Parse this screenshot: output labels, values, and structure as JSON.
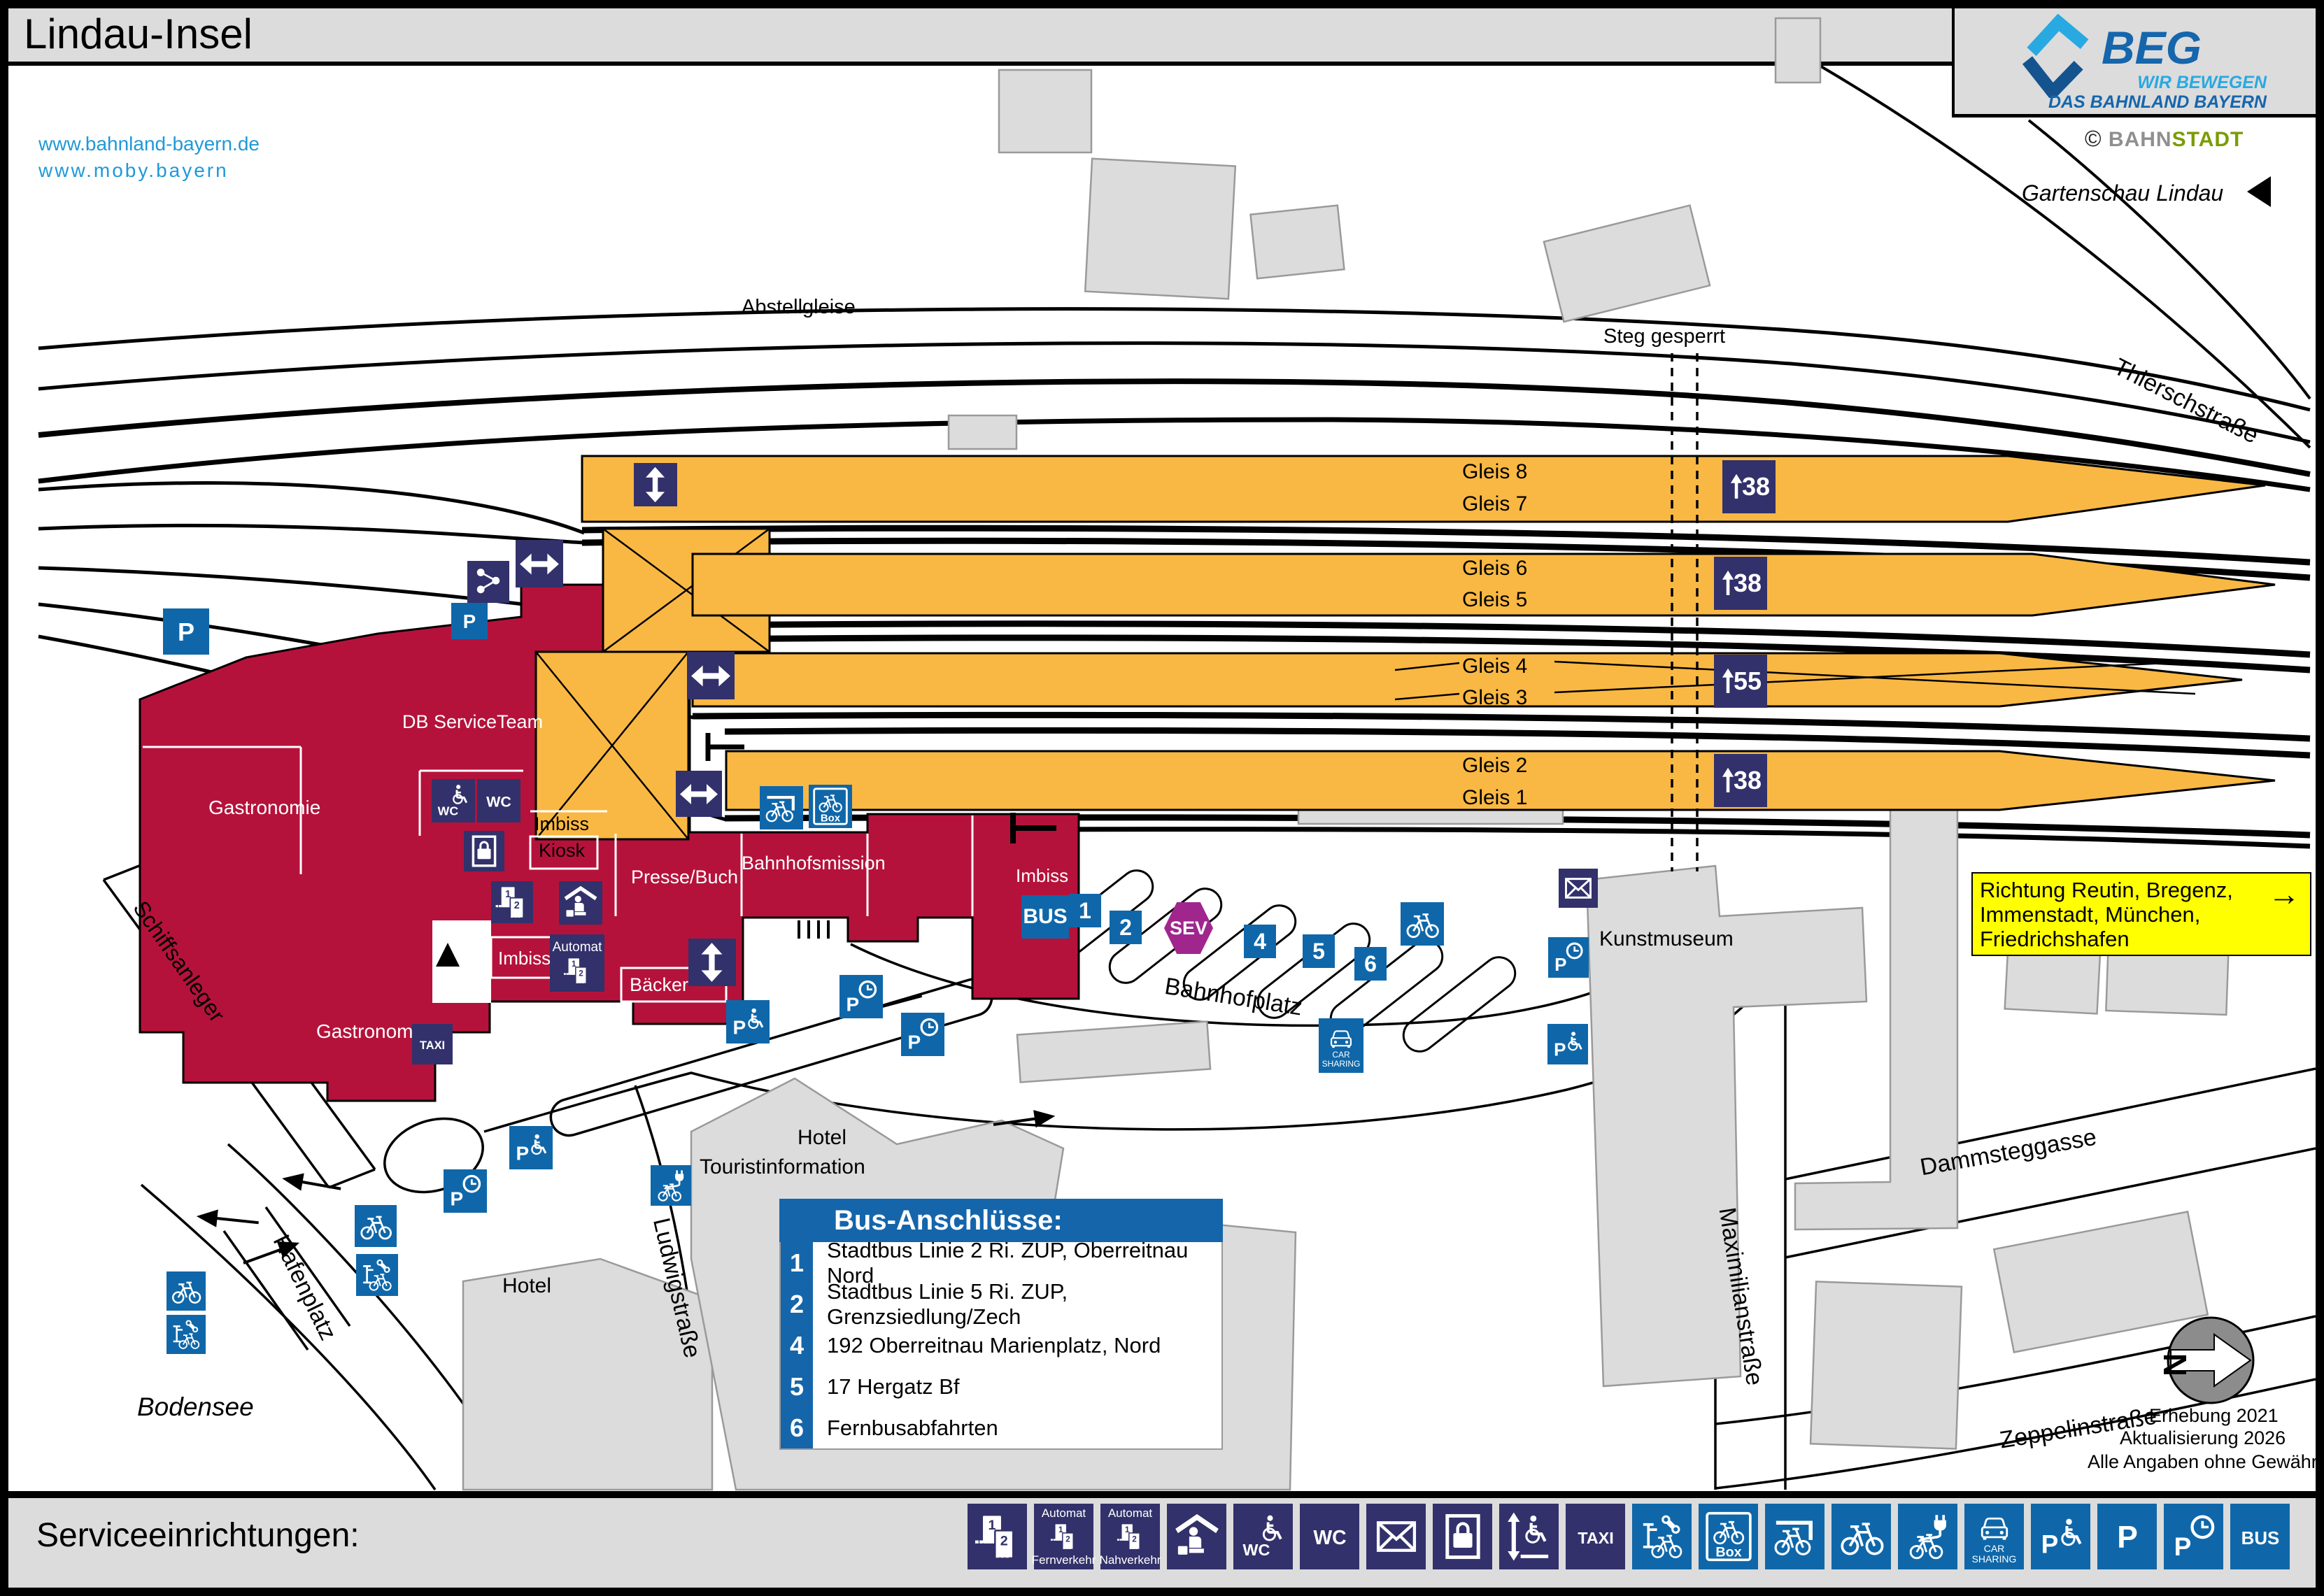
{
  "header": {
    "title": "Lindau-Insel",
    "links": [
      "www.bahnland-bayern.de",
      "www.moby.bayern"
    ],
    "beg": {
      "name": "BEG",
      "tagline1": "WIR BEWEGEN",
      "tagline2": "DAS BAHNLAND BAYERN"
    },
    "credit": {
      "copyright": "©",
      "part1": "BAHN",
      "part2": "STADT"
    },
    "gartenschau": "Gartenschau Lindau"
  },
  "map": {
    "labels": {
      "abstellgleise": "Abstellgleise",
      "steg": "Steg gesperrt",
      "thierschstrasse": "Thierschstraße",
      "bahnhofplatz": "Bahnhofplatz",
      "kunstmuseum": "Kunstmuseum",
      "maximilianstrasse": "Maximilianstraße",
      "dammsteggasse": "Dammsteggasse",
      "zeppelinstrasse": "Zeppelinstraße",
      "hafenplatz": "Hafenplatz",
      "bodensee": "Bodensee",
      "schiffsanleger": "Schiffsanleger",
      "ludwigstrasse": "Ludwigstraße",
      "hotel_left": "Hotel",
      "hotel_center": "Hotel",
      "touristinformation": "Touristinformation"
    },
    "building": {
      "db_serviceteam": "DB ServiceTeam",
      "gastronomie1": "Gastronomie",
      "gastronomie2": "Gastronomie",
      "imbiss_top": "Imbiss",
      "kiosk": "Kiosk",
      "presse_buch": "Presse/Buch",
      "bahnhofsmission": "Bahnhofsmission",
      "imbiss_east": "Imbiss",
      "imbiss_south": "Imbiss",
      "baecker": "Bäcker",
      "automat": "Automat",
      "wc": "WC",
      "taxi": "TAXI"
    },
    "platforms": [
      {
        "top": "Gleis 8",
        "bottom": "Gleis 7",
        "height": "38"
      },
      {
        "top": "Gleis 6",
        "bottom": "Gleis 5",
        "height": "38"
      },
      {
        "top": "Gleis 4",
        "bottom": "Gleis 3",
        "height": "55"
      },
      {
        "top": "Gleis 2",
        "bottom": "Gleis 1",
        "height": "38"
      }
    ],
    "stops": {
      "bus": "BUS",
      "s1": "1",
      "s2": "2",
      "sev": "SEV",
      "s4": "4",
      "s5": "5",
      "s6": "6"
    },
    "direction_box": {
      "line1": "Richtung Reutin, Bregenz,",
      "line2": "Immenstadt, München,",
      "line3": "Friedrichshafen",
      "arrow": "→"
    },
    "box_label": "Box",
    "p_label": "P",
    "car_sharing": [
      "CAR",
      "SHARING"
    ],
    "tickets_nums": [
      "1",
      "2"
    ],
    "notes": {
      "erhebung": "Erhebung 2021",
      "aktualisierung": "Aktualisierung 2026",
      "gewaehr": "Alle Angaben ohne Gewähr!",
      "compass_n": "N"
    }
  },
  "legend": {
    "title": "Bus-Anschlüsse:",
    "rows": [
      {
        "num": "1",
        "text": "Stadtbus Linie 2 Ri. ZUP, Oberreitnau Nord"
      },
      {
        "num": "2",
        "text": "Stadtbus Linie 5 Ri. ZUP, Grenzsiedlung/Zech"
      },
      {
        "num": "4",
        "text": "192 Oberreitnau Marienplatz, Nord"
      },
      {
        "num": "5",
        "text": "17 Hergatz Bf"
      },
      {
        "num": "6",
        "text": "Fernbusabfahrten"
      }
    ]
  },
  "footer": {
    "title": "Serviceeinrichtungen:",
    "icons": [
      {
        "name": "ticket-counter-icon",
        "type": "tickets"
      },
      {
        "name": "ticket-machine-longdistance-icon",
        "type": "automat",
        "top": "Automat",
        "bottom": "Fernverkehr"
      },
      {
        "name": "ticket-machine-local-icon",
        "type": "automat",
        "top": "Automat",
        "bottom": "Nahverkehr"
      },
      {
        "name": "bahnhofsmission-icon",
        "type": "mission"
      },
      {
        "name": "accessible-wc-icon",
        "type": "wcacc",
        "label": "WC"
      },
      {
        "name": "wc-icon",
        "type": "wc",
        "label": "WC"
      },
      {
        "name": "mailbox-icon",
        "type": "mail"
      },
      {
        "name": "luggage-locker-icon",
        "type": "locker"
      },
      {
        "name": "boarding-aid-icon",
        "type": "lift"
      },
      {
        "name": "taxi-icon",
        "type": "taxi",
        "label": "TAXI"
      },
      {
        "name": "bike-repair-icon",
        "type": "repair"
      },
      {
        "name": "bike-box-icon",
        "type": "box",
        "label": "Box"
      },
      {
        "name": "covered-bike-parking-icon",
        "type": "shelter"
      },
      {
        "name": "bike-parking-icon",
        "type": "bike"
      },
      {
        "name": "ebike-charging-icon",
        "type": "ebike"
      },
      {
        "name": "car-sharing-icon",
        "type": "carshare",
        "label1": "CAR",
        "label2": "SHARING"
      },
      {
        "name": "accessible-parking-icon",
        "type": "pacc",
        "label": "P"
      },
      {
        "name": "parking-icon",
        "type": "p",
        "label": "P"
      },
      {
        "name": "short-term-parking-icon",
        "type": "pclock",
        "label": "P"
      },
      {
        "name": "bus-icon",
        "type": "bus",
        "label": "BUS"
      }
    ]
  },
  "colors": {
    "platform_orange": "#f9b843",
    "building_red": "#b5123b",
    "icon_navy": "#32316b",
    "icon_blue": "#0f67a9",
    "legend_blue": "#1565ab",
    "sev_purple": "#a0268e",
    "link_blue": "#1f99d8",
    "beg_dark": "#1566ac",
    "beg_light": "#29a9e1",
    "bahn_gray": "#8f8f8f",
    "stadt_green": "#7a9c04",
    "highlight_yellow": "#ffff00",
    "background_gray": "#dcdcdc"
  }
}
